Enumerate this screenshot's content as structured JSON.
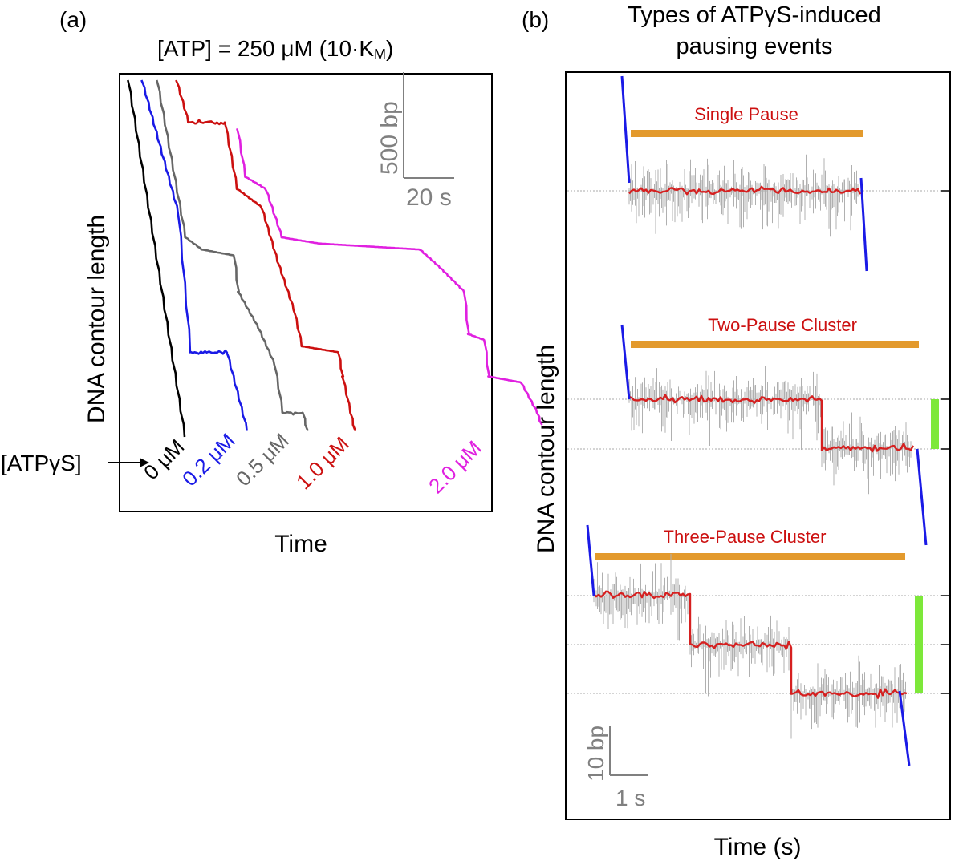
{
  "chart_data": [
    {
      "panel_label": "(a)",
      "type": "line",
      "title": "[ATP] = 250 μM (10·K",
      "title_subscript": "M",
      "title_suffix": ")",
      "xlabel": "Time",
      "ylabel": "DNA contour length",
      "scale_bar": {
        "y_label": "500 bp",
        "x_label": "20 s",
        "color": "#808080"
      },
      "arrow_label": "[ATPγS]",
      "units": {
        "x": "s",
        "y": "bp"
      },
      "series": [
        {
          "name": "0 μM",
          "color": "#000000",
          "points": [
            [
              0,
              2950
            ],
            [
              14,
              0
            ]
          ]
        },
        {
          "name": "0.2 μM",
          "color": "#1a1ae6",
          "points": [
            [
              0,
              2950
            ],
            [
              9,
              1850
            ],
            [
              12,
              700
            ],
            [
              21,
              700
            ],
            [
              26,
              50
            ]
          ]
        },
        {
          "name": "0.5 μM",
          "color": "#666666",
          "points": [
            [
              0,
              2950
            ],
            [
              7,
              1650
            ],
            [
              11,
              1550
            ],
            [
              19,
              1500
            ],
            [
              20,
              1200
            ],
            [
              25,
              900
            ],
            [
              29,
              600
            ],
            [
              31,
              200
            ],
            [
              36,
              200
            ],
            [
              37,
              50
            ]
          ]
        },
        {
          "name": "1.0 μM",
          "color": "#cc1010",
          "points": [
            [
              0,
              2950
            ],
            [
              3,
              2600
            ],
            [
              12,
              2600
            ],
            [
              15,
              2050
            ],
            [
              21,
              1900
            ],
            [
              25,
              1450
            ],
            [
              29,
              1050
            ],
            [
              31,
              750
            ],
            [
              40,
              700
            ],
            [
              41,
              500
            ],
            [
              43,
              200
            ],
            [
              44,
              50
            ]
          ]
        },
        {
          "name": "2.0 μM",
          "color": "#e020e0",
          "points": [
            [
              0,
              2550
            ],
            [
              2,
              2150
            ],
            [
              7,
              2050
            ],
            [
              11,
              1650
            ],
            [
              20,
              1600
            ],
            [
              45,
              1550
            ],
            [
              50,
              1400
            ],
            [
              56,
              1200
            ],
            [
              57,
              850
            ],
            [
              61,
              800
            ],
            [
              62,
              500
            ],
            [
              70,
              450
            ],
            [
              74,
              200
            ],
            [
              75,
              100
            ]
          ]
        }
      ]
    },
    {
      "panel_label": "(b)",
      "type": "line",
      "title": "Types of ATPγS-induced pausing events",
      "title_lines": [
        "Types of ATPγS-induced",
        "pausing events"
      ],
      "xlabel": "Time (s)",
      "ylabel": "DNA contour length",
      "scale_bar": {
        "y_label": "10 bp",
        "x_label": "1 s",
        "color": "#808080"
      },
      "colors": {
        "translocation": "#1a1ae6",
        "raw": "#b0b0b0",
        "filtered": "#d62020",
        "cluster_bar": "#e39a2d",
        "step_bar": "#7de83a",
        "cluster_label": "#cc1010"
      },
      "events": [
        {
          "name": "Single Pause",
          "pauses": 1,
          "levels_bp": [
            0
          ],
          "durations_s": [
            4.8
          ]
        },
        {
          "name": "Two-Pause Cluster",
          "pauses": 2,
          "levels_bp": [
            0,
            -10
          ],
          "durations_s": [
            4.0,
            1.9
          ],
          "step_size_bp": 10
        },
        {
          "name": "Three-Pause Cluster",
          "pauses": 3,
          "levels_bp": [
            0,
            -10,
            -20
          ],
          "durations_s": [
            2.0,
            2.1,
            2.4
          ],
          "step_size_bp": 10
        }
      ]
    }
  ]
}
